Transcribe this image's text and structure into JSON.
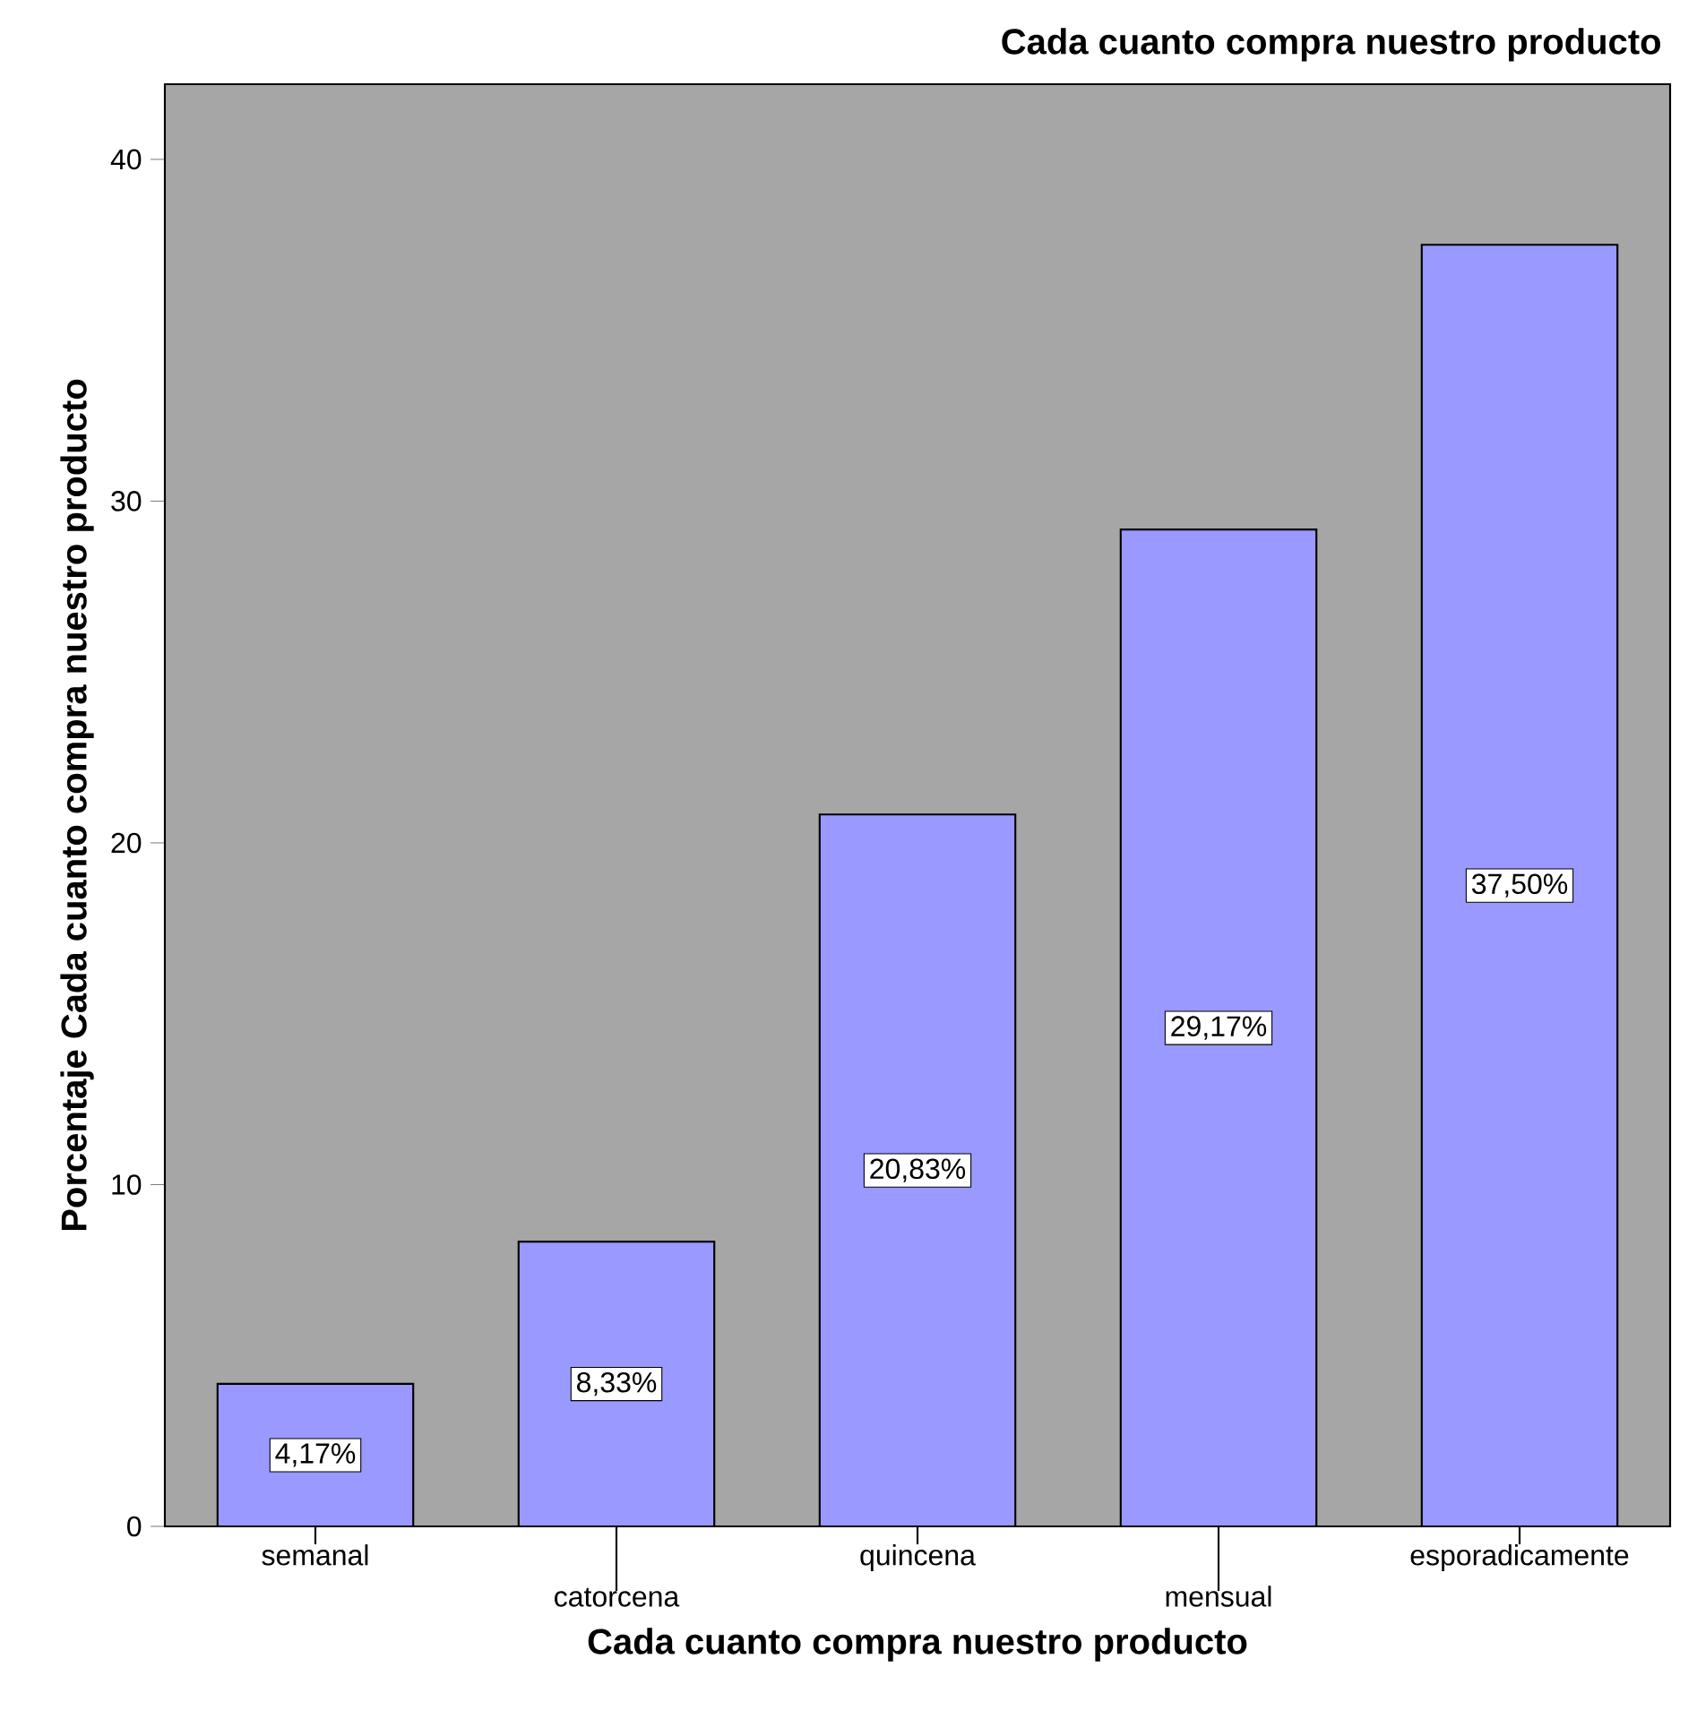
{
  "chart_data": {
    "type": "bar",
    "title": "Cada cuanto compra nuestro producto",
    "xlabel": "Cada cuanto compra nuestro producto",
    "ylabel": "Porcentaje Cada cuanto compra nuestro producto",
    "categories": [
      "semanal",
      "catorcena",
      "quincena",
      "mensual",
      "esporadicamente"
    ],
    "values": [
      4.17,
      8.33,
      20.83,
      29.17,
      37.5
    ],
    "value_labels": [
      "4,17%",
      "8,33%",
      "20,83%",
      "29,17%",
      "37,50%"
    ],
    "color": "#9999ff",
    "ylim": [
      0,
      42.2
    ],
    "yticks": [
      0,
      10,
      20,
      30,
      40
    ],
    "grid": false
  }
}
